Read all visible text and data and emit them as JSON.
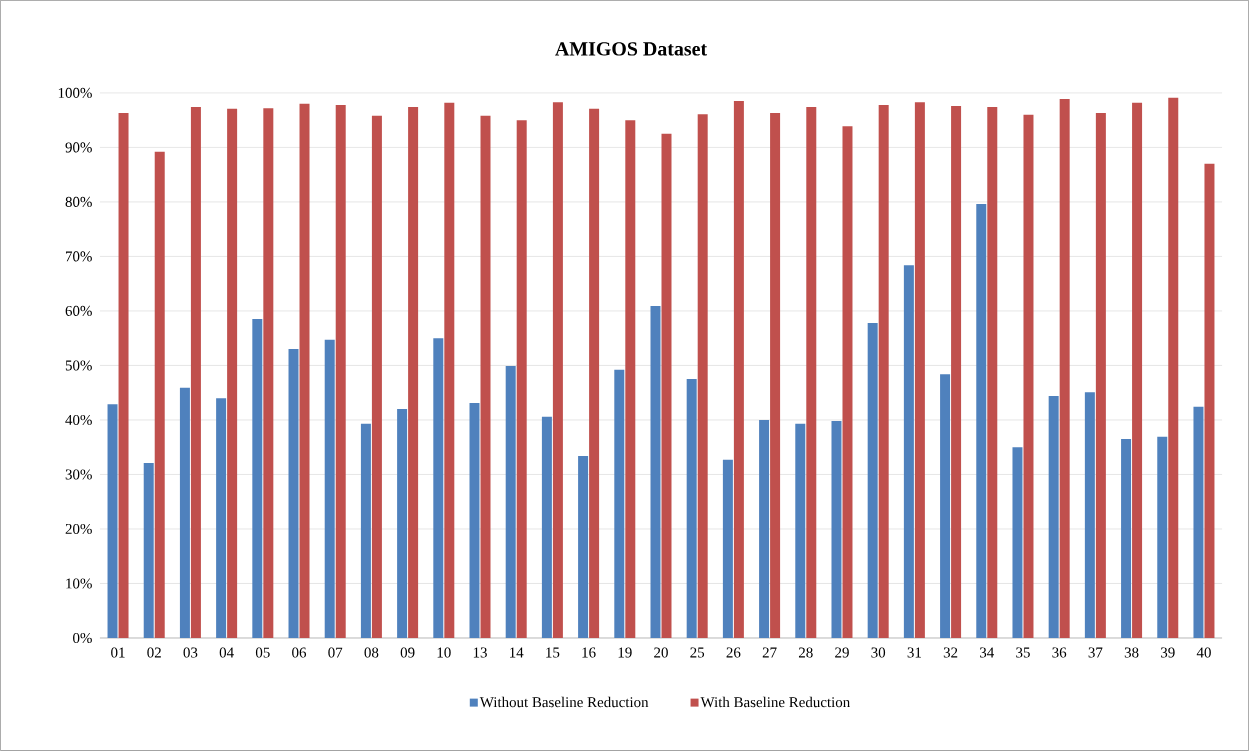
{
  "chart_data": {
    "type": "bar",
    "title": "AMIGOS Dataset",
    "categories": [
      "01",
      "02",
      "03",
      "04",
      "05",
      "06",
      "07",
      "08",
      "09",
      "10",
      "13",
      "14",
      "15",
      "16",
      "19",
      "20",
      "25",
      "26",
      "27",
      "28",
      "29",
      "30",
      "31",
      "32",
      "34",
      "35",
      "36",
      "37",
      "38",
      "39",
      "40"
    ],
    "series": [
      {
        "name": "Without Baseline Reduction",
        "color": "#4f81bd",
        "values": [
          42.9,
          32.1,
          45.9,
          44.0,
          58.5,
          53.0,
          54.7,
          39.3,
          42.0,
          55.0,
          43.1,
          49.9,
          40.6,
          33.4,
          49.2,
          60.9,
          47.5,
          32.7,
          40.0,
          39.3,
          39.8,
          57.8,
          68.4,
          48.4,
          79.6,
          35.0,
          44.4,
          45.1,
          36.5,
          36.9,
          42.4
        ]
      },
      {
        "name": "With Baseline Reduction",
        "color": "#c0504d",
        "values": [
          96.3,
          89.2,
          97.4,
          97.1,
          97.2,
          98.0,
          97.8,
          95.8,
          97.4,
          98.2,
          95.8,
          95.0,
          98.3,
          97.1,
          95.0,
          92.5,
          96.1,
          98.5,
          96.3,
          97.4,
          93.9,
          97.8,
          98.3,
          97.6,
          97.4,
          96.0,
          98.9,
          96.3,
          98.2,
          99.1,
          87.0
        ]
      }
    ],
    "ylim": [
      0,
      100
    ],
    "yticks": [
      {
        "value": 0,
        "label": "0%"
      },
      {
        "value": 10,
        "label": "10%"
      },
      {
        "value": 20,
        "label": "20%"
      },
      {
        "value": 30,
        "label": "30%"
      },
      {
        "value": 40,
        "label": "40%"
      },
      {
        "value": 50,
        "label": "50%"
      },
      {
        "value": 60,
        "label": "60%"
      },
      {
        "value": 70,
        "label": "70%"
      },
      {
        "value": 80,
        "label": "80%"
      },
      {
        "value": 90,
        "label": "90%"
      },
      {
        "value": 100,
        "label": "100%"
      }
    ],
    "grid": "y",
    "legend": "bottom"
  }
}
